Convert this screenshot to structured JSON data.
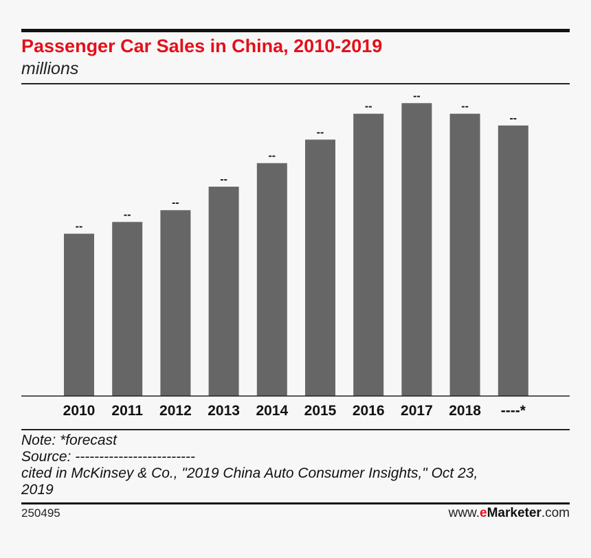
{
  "header": {
    "title": "Passenger Car Sales in China, 2010-2019",
    "subtitle": "millions"
  },
  "chart_data": {
    "type": "bar",
    "title": "Passenger Car Sales in China, 2010-2019",
    "ylabel": "millions",
    "xlabel": "",
    "categories": [
      "2010",
      "2011",
      "2012",
      "2013",
      "2014",
      "2015",
      "2016",
      "2017",
      "2018",
      "----*"
    ],
    "values": [
      13.8,
      14.8,
      15.8,
      17.8,
      19.8,
      21.8,
      24.0,
      24.9,
      24.0,
      23.0
    ],
    "data_labels": [
      "--",
      "--",
      "--",
      "--",
      "--",
      "--",
      "--",
      "--",
      "--",
      "--"
    ],
    "ylim": [
      0,
      25.5
    ],
    "grid": false,
    "legend": "none",
    "bar_color": "#666666"
  },
  "notes": {
    "note": "Note: *forecast",
    "source": "Source: -------------------------",
    "cited_line1": "cited in McKinsey & Co., \"2019 China Auto Consumer Insights,\" Oct 23,",
    "cited_line2": "2019"
  },
  "footer": {
    "chart_id": "250495",
    "brand_prefix": "www.",
    "brand_e": "e",
    "brand_name": "Marketer",
    "brand_suffix": ".com"
  }
}
